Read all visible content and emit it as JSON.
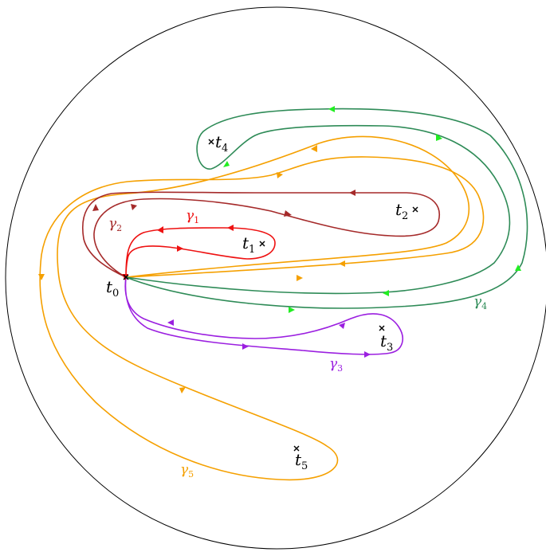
{
  "points": {
    "t0": {
      "base": "t",
      "sub": "0"
    },
    "t1": {
      "base": "t",
      "sub": "1"
    },
    "t2": {
      "base": "t",
      "sub": "2"
    },
    "t3": {
      "base": "t",
      "sub": "3"
    },
    "t4": {
      "base": "t",
      "sub": "4"
    },
    "t5": {
      "base": "t",
      "sub": "5"
    }
  },
  "paths": {
    "gamma1": {
      "base": "γ",
      "sub": "1",
      "color": "#ee1111"
    },
    "gamma2": {
      "base": "γ",
      "sub": "2",
      "color": "#a52a2a"
    },
    "gamma3": {
      "base": "γ",
      "sub": "3",
      "color": "#9b1fe0"
    },
    "gamma4": {
      "base": "γ",
      "sub": "4",
      "color": "#2e8b57",
      "arrow_color": "#22ee22"
    },
    "gamma5": {
      "base": "γ",
      "sub": "5",
      "color": "#f5a000"
    }
  },
  "colors": {
    "circle": "#000000",
    "marker": "#000000"
  }
}
